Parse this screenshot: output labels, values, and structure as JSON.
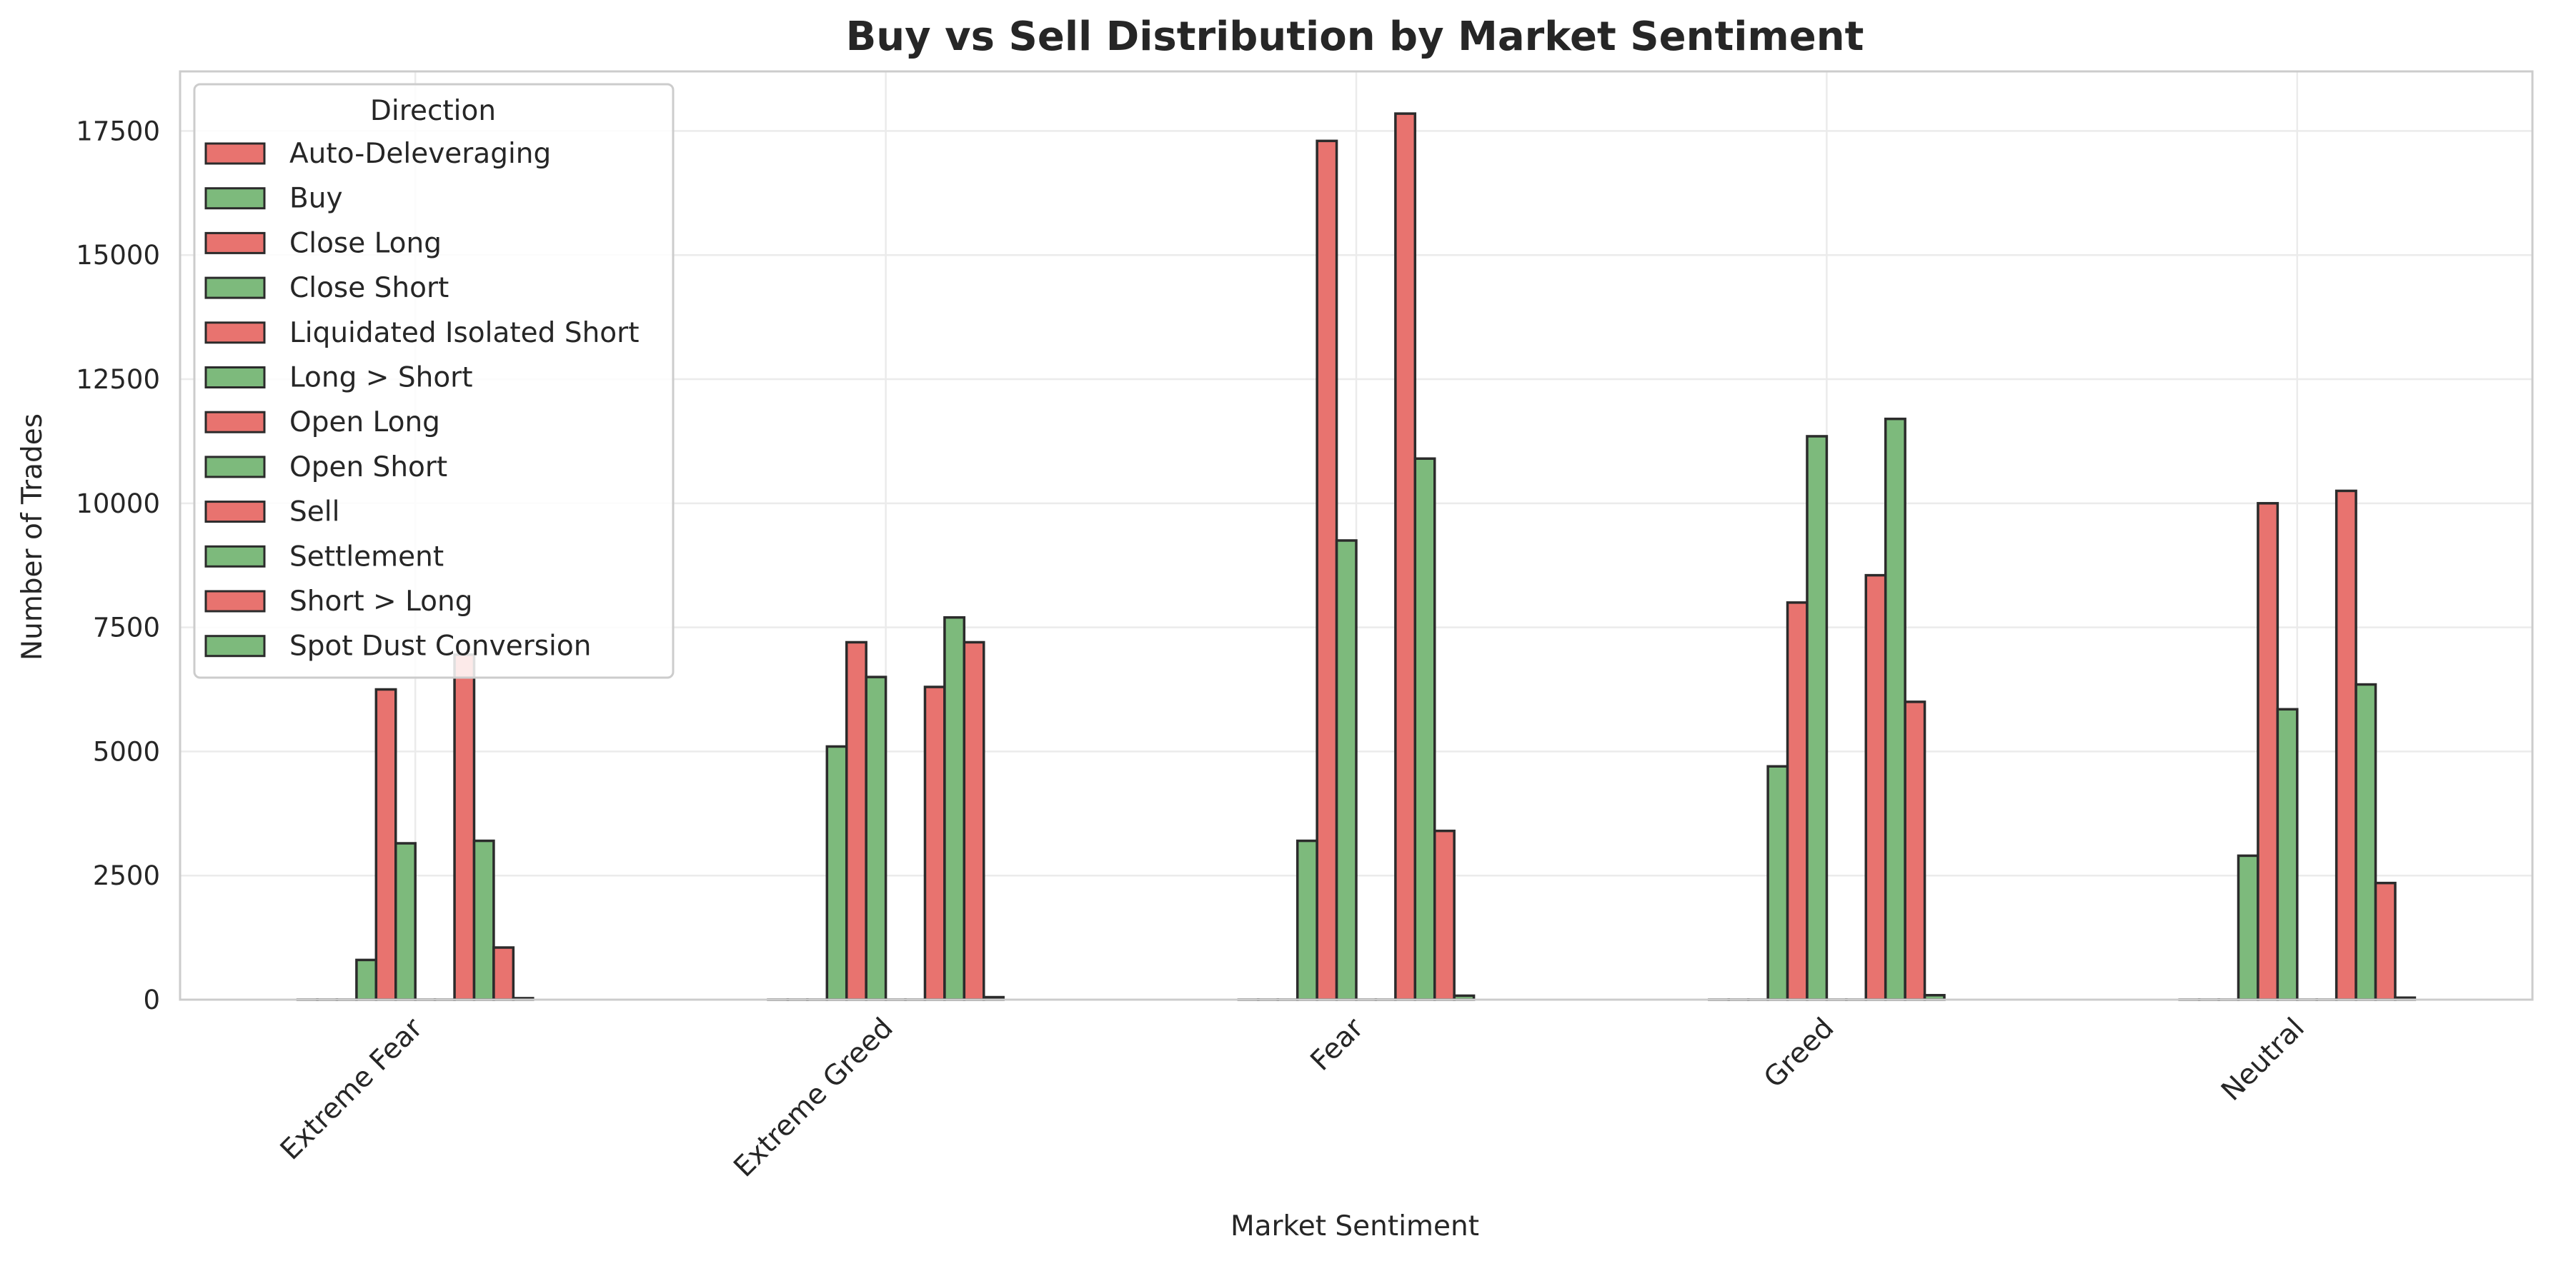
{
  "chart_data": {
    "type": "bar",
    "title": "Buy vs Sell Distribution by Market Sentiment",
    "xlabel": "Market Sentiment",
    "ylabel": "Number of Trades",
    "categories": [
      "Extreme Fear",
      "Extreme Greed",
      "Fear",
      "Greed",
      "Neutral"
    ],
    "ylim": [
      0,
      18700
    ],
    "yticks": [
      0,
      2500,
      5000,
      7500,
      10000,
      12500,
      15000,
      17500
    ],
    "grid": true,
    "legend": {
      "title": "Direction",
      "position": "top-left"
    },
    "colors": {
      "sell": "#e8736f",
      "buy": "#7dba7c",
      "edge": "#2b2b2b",
      "grid": "#ebebeb",
      "spine": "#cccccc"
    },
    "series": [
      {
        "name": "Auto-Deleveraging",
        "color": "sell",
        "values": [
          0,
          0,
          0,
          0,
          0
        ]
      },
      {
        "name": "Buy",
        "color": "buy",
        "values": [
          0,
          0,
          0,
          0,
          0
        ]
      },
      {
        "name": "Close Long",
        "color": "sell",
        "values": [
          0,
          0,
          0,
          0,
          0
        ]
      },
      {
        "name": "Close Short",
        "color": "buy",
        "values": [
          800,
          5100,
          3200,
          4700,
          2900
        ]
      },
      {
        "name": "Liquidated Isolated Short",
        "color": "sell",
        "values": [
          6250,
          7200,
          17300,
          8000,
          10000
        ]
      },
      {
        "name": "Long > Short",
        "color": "buy",
        "values": [
          3150,
          6500,
          9250,
          11350,
          5850
        ]
      },
      {
        "name": "Open Long",
        "color": "sell",
        "values": [
          0,
          0,
          0,
          0,
          0
        ]
      },
      {
        "name": "Open Short",
        "color": "buy",
        "values": [
          0,
          0,
          0,
          0,
          0
        ]
      },
      {
        "name": "Sell",
        "color": "sell",
        "values": [
          6950,
          6300,
          17850,
          8550,
          10250
        ]
      },
      {
        "name": "Settlement",
        "color": "buy",
        "values": [
          3200,
          7700,
          10900,
          11700,
          6350
        ]
      },
      {
        "name": "Short > Long",
        "color": "sell",
        "values": [
          1050,
          7200,
          3400,
          6000,
          2350
        ]
      },
      {
        "name": "Spot Dust Conversion",
        "color": "buy",
        "values": [
          30,
          50,
          80,
          90,
          40
        ]
      }
    ]
  }
}
